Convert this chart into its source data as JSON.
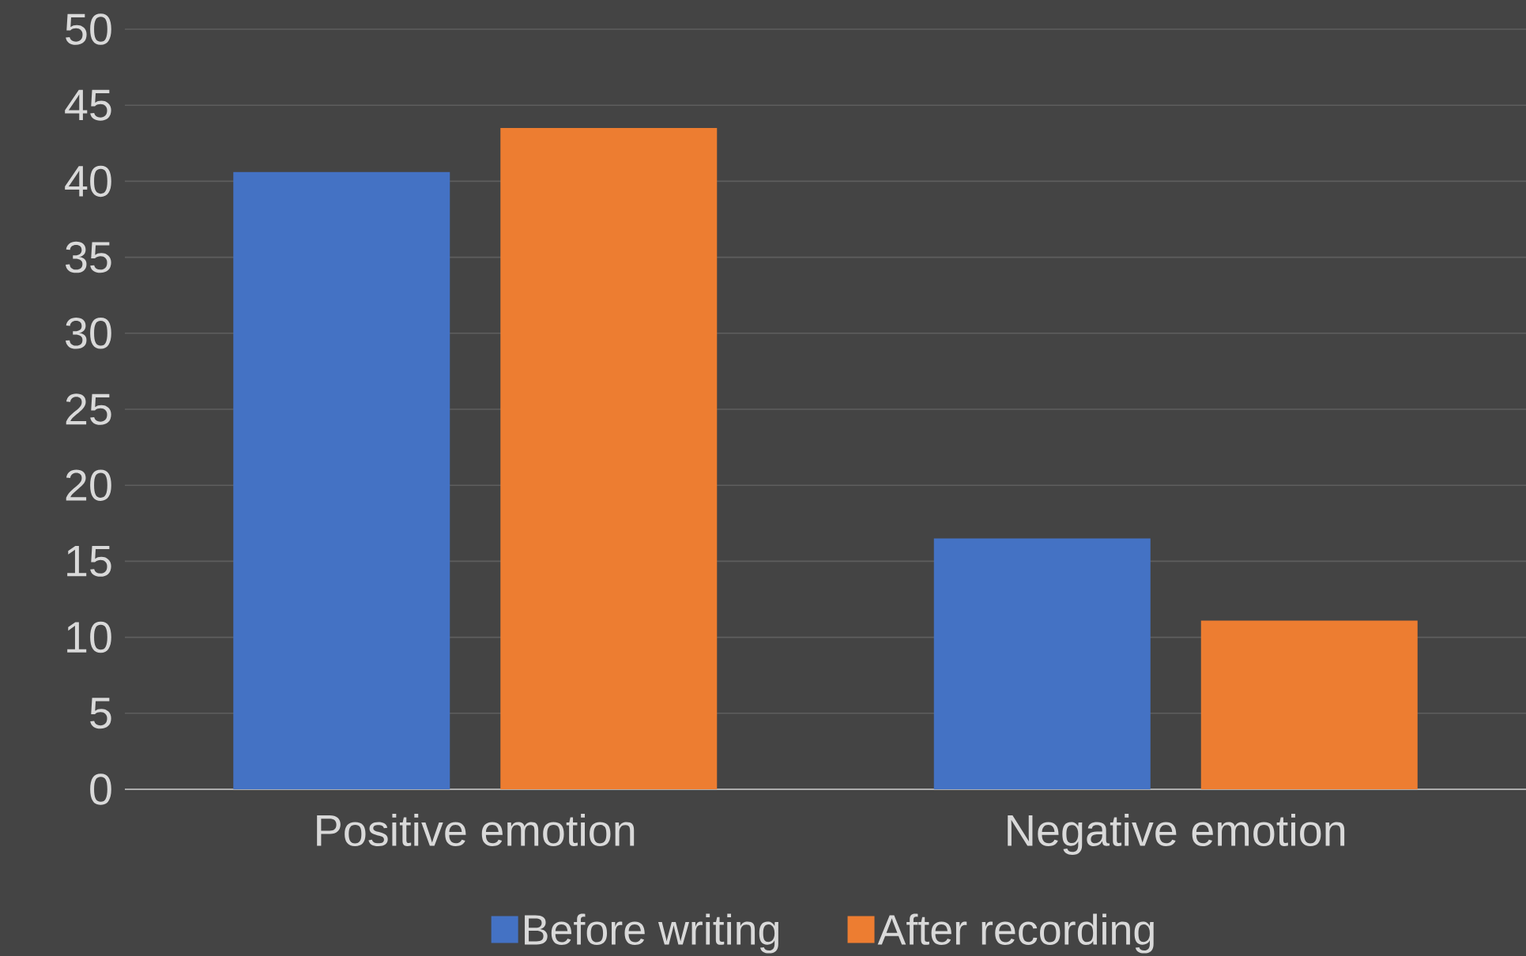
{
  "chart_data": {
    "type": "bar",
    "categories": [
      "Positive emotion",
      "Negative emotion"
    ],
    "series": [
      {
        "name": "Before writing",
        "color": "#4472c4",
        "values": [
          40.6,
          16.5
        ]
      },
      {
        "name": "After recording",
        "color": "#ed7d31",
        "values": [
          43.5,
          11.1
        ]
      }
    ],
    "ylim": [
      0,
      50
    ],
    "yticks": [
      0,
      5,
      10,
      15,
      20,
      25,
      30,
      35,
      40,
      45,
      50
    ],
    "grid": "y",
    "legend": "bottom"
  }
}
